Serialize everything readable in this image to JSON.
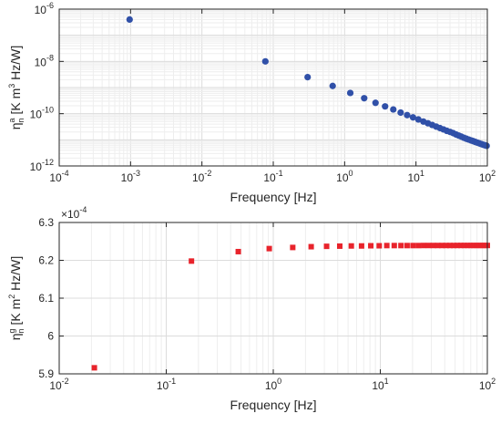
{
  "chart_data": [
    {
      "type": "scatter",
      "xscale": "log",
      "yscale": "log",
      "xlim": [
        0.0001,
        100
      ],
      "ylim": [
        1e-12,
        1e-06
      ],
      "xlabel": "Frequency [Hz]",
      "ylabel": {
        "base": "η",
        "superscript": "a",
        "subscript": "n",
        "rest": " [K m",
        "unit_power": "3",
        "tail": " Hz/W]"
      },
      "xtick_labels": [
        {
          "base": "10",
          "exp": "-4",
          "value": 0.0001
        },
        {
          "base": "10",
          "exp": "-3",
          "value": 0.001
        },
        {
          "base": "10",
          "exp": "-2",
          "value": 0.01
        },
        {
          "base": "10",
          "exp": "-1",
          "value": 0.1
        },
        {
          "base": "10",
          "exp": "0",
          "value": 1
        },
        {
          "base": "10",
          "exp": "1",
          "value": 10
        },
        {
          "base": "10",
          "exp": "2",
          "value": 100
        }
      ],
      "ytick_labels": [
        {
          "base": "10",
          "exp": "-12",
          "value": 1e-12
        },
        {
          "base": "10",
          "exp": "-10",
          "value": 1e-10
        },
        {
          "base": "10",
          "exp": "-8",
          "value": 1e-08
        },
        {
          "base": "10",
          "exp": "-6",
          "value": 1e-06
        }
      ],
      "grid": true,
      "marker": "circle",
      "color": "#3050a8",
      "series": [
        {
          "x": [
            0.00097,
            0.0775,
            0.303,
            0.68,
            1.2,
            1.88,
            2.71,
            3.69,
            4.81,
            6.1,
            7.52,
            9.09,
            10.8,
            12.7,
            14.7,
            16.9,
            19.2,
            21.7,
            24.3,
            27.1,
            30.1,
            33.2,
            36.4,
            39.8,
            43.3,
            47.0,
            50.9,
            54.9,
            59.0,
            63.3,
            67.8,
            72.4,
            77.2,
            82.1,
            87.1,
            92.3,
            97.7
          ],
          "y": [
            4e-07,
            1e-08,
            2.5e-09,
            1.15e-09,
            6.2e-10,
            3.9e-10,
            2.6e-10,
            1.9e-10,
            1.45e-10,
            1.1e-10,
            8.8e-11,
            7.2e-11,
            6e-11,
            5e-11,
            4.3e-11,
            3.7e-11,
            3.2e-11,
            2.8e-11,
            2.5e-11,
            2.2e-11,
            2e-11,
            1.8e-11,
            1.6e-11,
            1.45e-11,
            1.32e-11,
            1.2e-11,
            1.1e-11,
            1.02e-11,
            9.5e-12,
            8.9e-12,
            8.3e-12,
            7.8e-12,
            7.3e-12,
            6.9e-12,
            6.5e-12,
            6.2e-12,
            5.9e-12
          ]
        }
      ]
    },
    {
      "type": "scatter",
      "xscale": "log",
      "yscale": "linear",
      "xlim": [
        0.01,
        100
      ],
      "ylim": [
        5.9,
        6.3
      ],
      "exponent_label": {
        "prefix": "×10",
        "exp": "-4"
      },
      "xlabel": "Frequency [Hz]",
      "ylabel": {
        "base": "η",
        "superscript": "g",
        "subscript": "n",
        "rest": " [K m",
        "unit_power": "2",
        "tail": " Hz/W]"
      },
      "xtick_labels": [
        {
          "base": "10",
          "exp": "-2",
          "value": 0.01
        },
        {
          "base": "10",
          "exp": "-1",
          "value": 0.1
        },
        {
          "base": "10",
          "exp": "0",
          "value": 1
        },
        {
          "base": "10",
          "exp": "1",
          "value": 10
        },
        {
          "base": "10",
          "exp": "2",
          "value": 100
        }
      ],
      "ytick_labels": [
        {
          "text": "5.9",
          "value": 5.9
        },
        {
          "text": "6",
          "value": 6.0
        },
        {
          "text": "6.1",
          "value": 6.1
        },
        {
          "text": "6.2",
          "value": 6.2
        },
        {
          "text": "6.3",
          "value": 6.3
        }
      ],
      "grid": true,
      "marker": "square",
      "color": "#e8232b",
      "series": [
        {
          "x": [
            0.0213,
            0.172,
            0.471,
            0.917,
            1.52,
            2.26,
            3.15,
            4.18,
            5.36,
            6.68,
            8.15,
            9.77,
            11.5,
            13.5,
            15.6,
            17.8,
            20.2,
            22.7,
            25.4,
            28.3,
            31.3,
            34.4,
            37.7,
            41.2,
            44.8,
            48.6,
            52.5,
            56.6,
            60.9,
            65.3,
            69.8,
            74.5,
            79.4,
            84.4,
            89.6,
            95.0,
            100.0
          ],
          "y": [
            5.916,
            6.198,
            6.223,
            6.231,
            6.234,
            6.236,
            6.237,
            6.2375,
            6.238,
            6.238,
            6.2385,
            6.2385,
            6.239,
            6.239,
            6.239,
            6.239,
            6.239,
            6.239,
            6.2392,
            6.2392,
            6.2392,
            6.2392,
            6.2392,
            6.2392,
            6.2392,
            6.2392,
            6.2393,
            6.2393,
            6.2393,
            6.2393,
            6.2393,
            6.2393,
            6.2393,
            6.2393,
            6.2393,
            6.2393,
            6.2393
          ]
        }
      ]
    }
  ]
}
